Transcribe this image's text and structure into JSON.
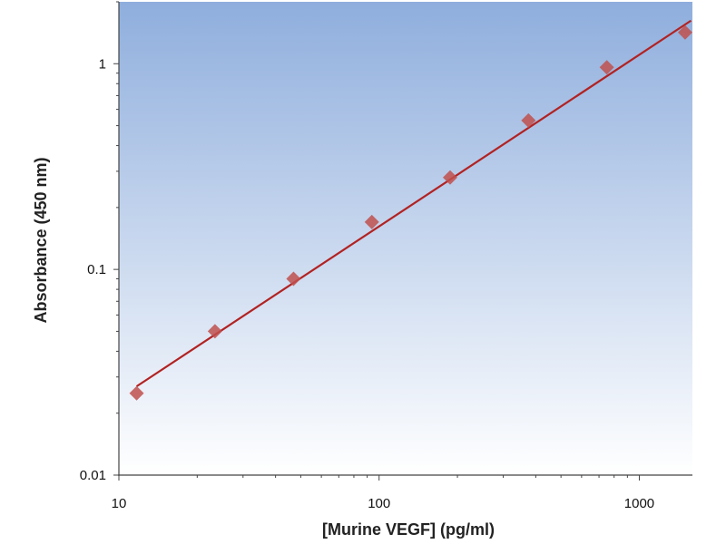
{
  "chart_data": {
    "type": "scatter",
    "title": "",
    "xlabel": "[Murine VEGF] (pg/ml)",
    "ylabel": "Absorbance (450 nm)",
    "x_scale": "log",
    "y_scale": "log",
    "xlim": [
      10,
      1600
    ],
    "ylim": [
      0.01,
      2
    ],
    "x_ticks": [
      10,
      100,
      1000
    ],
    "x_tick_labels": [
      "10",
      "100",
      "1000"
    ],
    "y_ticks": [
      0.01,
      0.1,
      1
    ],
    "y_tick_labels": [
      "0.01",
      "0.1",
      "1"
    ],
    "grid": false,
    "series": [
      {
        "points": [
          {
            "x": 11.7,
            "y": 0.025
          },
          {
            "x": 23.4,
            "y": 0.05
          },
          {
            "x": 46.9,
            "y": 0.09
          },
          {
            "x": 93.8,
            "y": 0.17
          },
          {
            "x": 187.5,
            "y": 0.28
          },
          {
            "x": 375,
            "y": 0.53
          },
          {
            "x": 750,
            "y": 0.96
          },
          {
            "x": 1500,
            "y": 1.42
          }
        ],
        "marker": "diamond",
        "color": "#c0504d"
      }
    ],
    "fit_line": {
      "x": [
        11.7,
        1580
      ],
      "y": [
        0.027,
        1.62
      ],
      "color": "#b22222"
    },
    "plot_background": {
      "top": "#8faedd",
      "bottom": "#ffffff"
    }
  }
}
